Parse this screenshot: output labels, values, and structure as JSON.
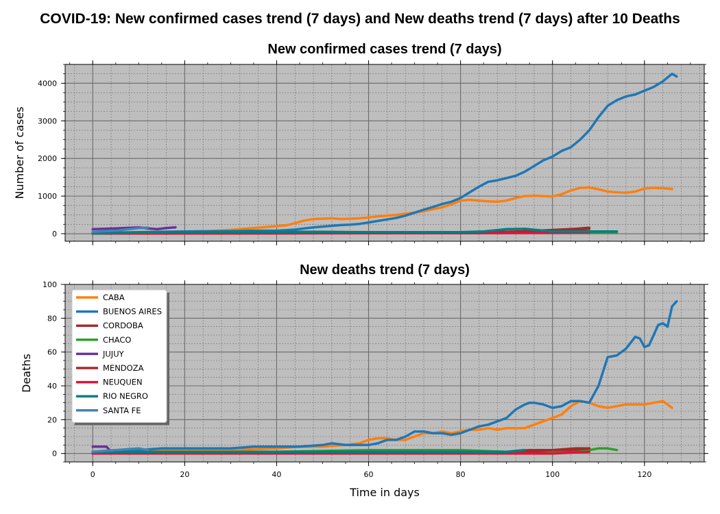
{
  "figure": {
    "suptitle": "COVID-19: New confirmed cases trend (7 days) and New deaths trend (7 days) after 10 Deaths",
    "xlabel": "Time in days",
    "background": "#ffffff",
    "axes_face": "#bebebe"
  },
  "colors": {
    "CABA": "#ff7f0e",
    "BUENOS AIRES": "#1f77b4",
    "CORDOBA": "#a52a2a",
    "CHACO": "#2ca02c",
    "JUJUY": "#663399",
    "MENDOZA": "#a52a2a",
    "NEUQUEN": "#dc143c",
    "RIO NEGRO": "#008080",
    "SANTA FE": "#4682b4"
  },
  "chart_data": [
    {
      "type": "line",
      "title": "New confirmed cases trend (7 days)",
      "xlabel": "",
      "ylabel": "Number of cases",
      "xlim": [
        -6,
        133
      ],
      "ylim": [
        -200,
        4500
      ],
      "xticks": [
        0,
        20,
        40,
        60,
        80,
        100,
        120
      ],
      "yticks": [
        0,
        1000,
        2000,
        3000,
        4000
      ],
      "grid": true,
      "legend": "none",
      "series": [
        {
          "name": "CABA",
          "x": [
            0,
            5,
            10,
            15,
            20,
            25,
            30,
            35,
            40,
            42,
            44,
            46,
            48,
            50,
            52,
            54,
            56,
            58,
            60,
            62,
            64,
            66,
            68,
            70,
            72,
            74,
            76,
            78,
            80,
            82,
            84,
            86,
            88,
            90,
            92,
            94,
            96,
            98,
            100,
            102,
            104,
            106,
            108,
            110,
            112,
            114,
            116,
            118,
            120,
            122,
            124,
            126
          ],
          "y": [
            20,
            30,
            40,
            50,
            60,
            70,
            100,
            150,
            200,
            220,
            280,
            350,
            390,
            400,
            410,
            390,
            400,
            410,
            430,
            460,
            480,
            500,
            530,
            560,
            600,
            650,
            700,
            780,
            880,
            900,
            880,
            860,
            850,
            880,
            950,
            1000,
            1010,
            1000,
            990,
            1050,
            1150,
            1220,
            1230,
            1180,
            1120,
            1100,
            1090,
            1120,
            1200,
            1220,
            1210,
            1190
          ]
        },
        {
          "name": "BUENOS AIRES",
          "x": [
            0,
            5,
            10,
            15,
            20,
            25,
            30,
            35,
            40,
            44,
            46,
            48,
            50,
            52,
            54,
            56,
            58,
            60,
            62,
            64,
            66,
            68,
            70,
            72,
            74,
            76,
            78,
            80,
            82,
            84,
            86,
            88,
            90,
            92,
            94,
            96,
            98,
            100,
            102,
            104,
            106,
            108,
            110,
            112,
            114,
            116,
            118,
            120,
            122,
            124,
            126,
            127
          ],
          "y": [
            20,
            30,
            40,
            50,
            60,
            65,
            70,
            80,
            80,
            110,
            140,
            170,
            190,
            210,
            230,
            240,
            260,
            300,
            340,
            380,
            420,
            480,
            560,
            640,
            710,
            790,
            850,
            950,
            1100,
            1250,
            1380,
            1420,
            1480,
            1540,
            1650,
            1800,
            1950,
            2050,
            2200,
            2300,
            2500,
            2750,
            3100,
            3400,
            3550,
            3650,
            3700,
            3800,
            3900,
            4050,
            4250,
            4180
          ]
        },
        {
          "name": "CORDOBA",
          "x": [
            0,
            20,
            40,
            60,
            80,
            90,
            95,
            100,
            105,
            108
          ],
          "y": [
            5,
            10,
            15,
            20,
            25,
            40,
            70,
            100,
            130,
            160
          ]
        },
        {
          "name": "CHACO",
          "x": [
            0,
            20,
            40,
            60,
            80,
            100,
            110,
            114
          ],
          "y": [
            5,
            20,
            30,
            30,
            25,
            30,
            40,
            40
          ]
        },
        {
          "name": "JUJUY",
          "x": [
            0,
            5,
            10,
            12,
            14,
            16,
            18
          ],
          "y": [
            120,
            140,
            170,
            140,
            120,
            150,
            170
          ]
        },
        {
          "name": "MENDOZA",
          "x": [
            0,
            40,
            60,
            80,
            90,
            100,
            105,
            108
          ],
          "y": [
            5,
            10,
            20,
            30,
            50,
            90,
            110,
            130
          ]
        },
        {
          "name": "NEUQUEN",
          "x": [
            0,
            40,
            80,
            100,
            108
          ],
          "y": [
            5,
            10,
            15,
            20,
            25
          ]
        },
        {
          "name": "RIO NEGRO",
          "x": [
            0,
            10,
            20,
            30,
            40,
            50,
            60,
            70,
            80,
            85,
            90,
            94,
            100,
            114
          ],
          "y": [
            10,
            30,
            40,
            50,
            50,
            50,
            40,
            40,
            40,
            60,
            120,
            130,
            60,
            60
          ]
        },
        {
          "name": "SANTA FE",
          "x": [
            0,
            5,
            10,
            12
          ],
          "y": [
            50,
            80,
            150,
            160
          ]
        }
      ]
    },
    {
      "type": "line",
      "title": "New deaths trend (7 days)",
      "xlabel": "Time in days",
      "ylabel": "Deaths",
      "xlim": [
        -6,
        133
      ],
      "ylim": [
        -5,
        100
      ],
      "xticks": [
        0,
        20,
        40,
        60,
        80,
        100,
        120
      ],
      "yticks": [
        0,
        20,
        40,
        60,
        80,
        100
      ],
      "grid": true,
      "legend": "upper left",
      "series": [
        {
          "name": "CABA",
          "x": [
            0,
            10,
            20,
            30,
            40,
            45,
            50,
            55,
            58,
            60,
            62,
            64,
            66,
            68,
            70,
            72,
            74,
            76,
            78,
            80,
            82,
            84,
            86,
            88,
            90,
            92,
            94,
            96,
            98,
            100,
            102,
            104,
            106,
            108,
            110,
            112,
            114,
            116,
            118,
            120,
            122,
            124,
            126
          ],
          "y": [
            1,
            2,
            2,
            2,
            3,
            4,
            4,
            5,
            6,
            8,
            9,
            9,
            8,
            8,
            10,
            12,
            12,
            13,
            12,
            13,
            14,
            14,
            15,
            14,
            15,
            15,
            15,
            17,
            19,
            21,
            23,
            28,
            31,
            30,
            28,
            27,
            28,
            29,
            29,
            29,
            30,
            31,
            27
          ]
        },
        {
          "name": "BUENOS AIRES",
          "x": [
            0,
            5,
            10,
            15,
            20,
            25,
            30,
            35,
            40,
            45,
            50,
            52,
            55,
            58,
            60,
            62,
            64,
            66,
            68,
            70,
            72,
            74,
            76,
            78,
            80,
            82,
            84,
            86,
            88,
            90,
            92,
            94,
            95,
            96,
            98,
            100,
            102,
            104,
            106,
            108,
            110,
            112,
            114,
            116,
            118,
            119,
            120,
            121,
            122,
            123,
            124,
            125,
            126,
            127
          ],
          "y": [
            1,
            2,
            2,
            3,
            3,
            3,
            3,
            4,
            4,
            4,
            5,
            6,
            5,
            5,
            5,
            6,
            8,
            8,
            10,
            13,
            13,
            12,
            12,
            11,
            12,
            14,
            16,
            17,
            19,
            21,
            26,
            29,
            30,
            30,
            29,
            27,
            28,
            31,
            31,
            30,
            40,
            57,
            58,
            62,
            69,
            68,
            63,
            64,
            70,
            76,
            77,
            75,
            87,
            90
          ]
        },
        {
          "name": "CORDOBA",
          "x": [
            0,
            20,
            40,
            60,
            70,
            80,
            90,
            95,
            100,
            105,
            108
          ],
          "y": [
            0,
            1,
            1,
            1,
            1,
            1,
            1,
            2,
            2,
            3,
            3
          ]
        },
        {
          "name": "CHACO",
          "x": [
            0,
            20,
            40,
            60,
            70,
            80,
            90,
            100,
            104,
            108,
            110,
            112,
            114
          ],
          "y": [
            0,
            1,
            1,
            2,
            2,
            2,
            1,
            1,
            1,
            2,
            3,
            3,
            2
          ]
        },
        {
          "name": "JUJUY",
          "x": [
            0,
            2,
            3,
            4,
            5
          ],
          "y": [
            4,
            4,
            4,
            1,
            1
          ]
        },
        {
          "name": "MENDOZA",
          "x": [
            0,
            40,
            60,
            80,
            90,
            95,
            100,
            104,
            108
          ],
          "y": [
            0,
            0,
            0,
            1,
            1,
            1,
            2,
            2,
            3
          ]
        },
        {
          "name": "NEUQUEN",
          "x": [
            0,
            40,
            80,
            100,
            108
          ],
          "y": [
            0,
            0,
            0,
            0,
            1
          ]
        },
        {
          "name": "RIO NEGRO",
          "x": [
            0,
            10,
            20,
            30,
            40,
            50,
            60,
            70,
            80,
            90,
            94
          ],
          "y": [
            1,
            1,
            1,
            1,
            1,
            1,
            1,
            1,
            1,
            1,
            2
          ]
        },
        {
          "name": "SANTA FE",
          "x": [
            0,
            5,
            10,
            12
          ],
          "y": [
            1,
            2,
            3,
            2
          ]
        }
      ]
    }
  ]
}
